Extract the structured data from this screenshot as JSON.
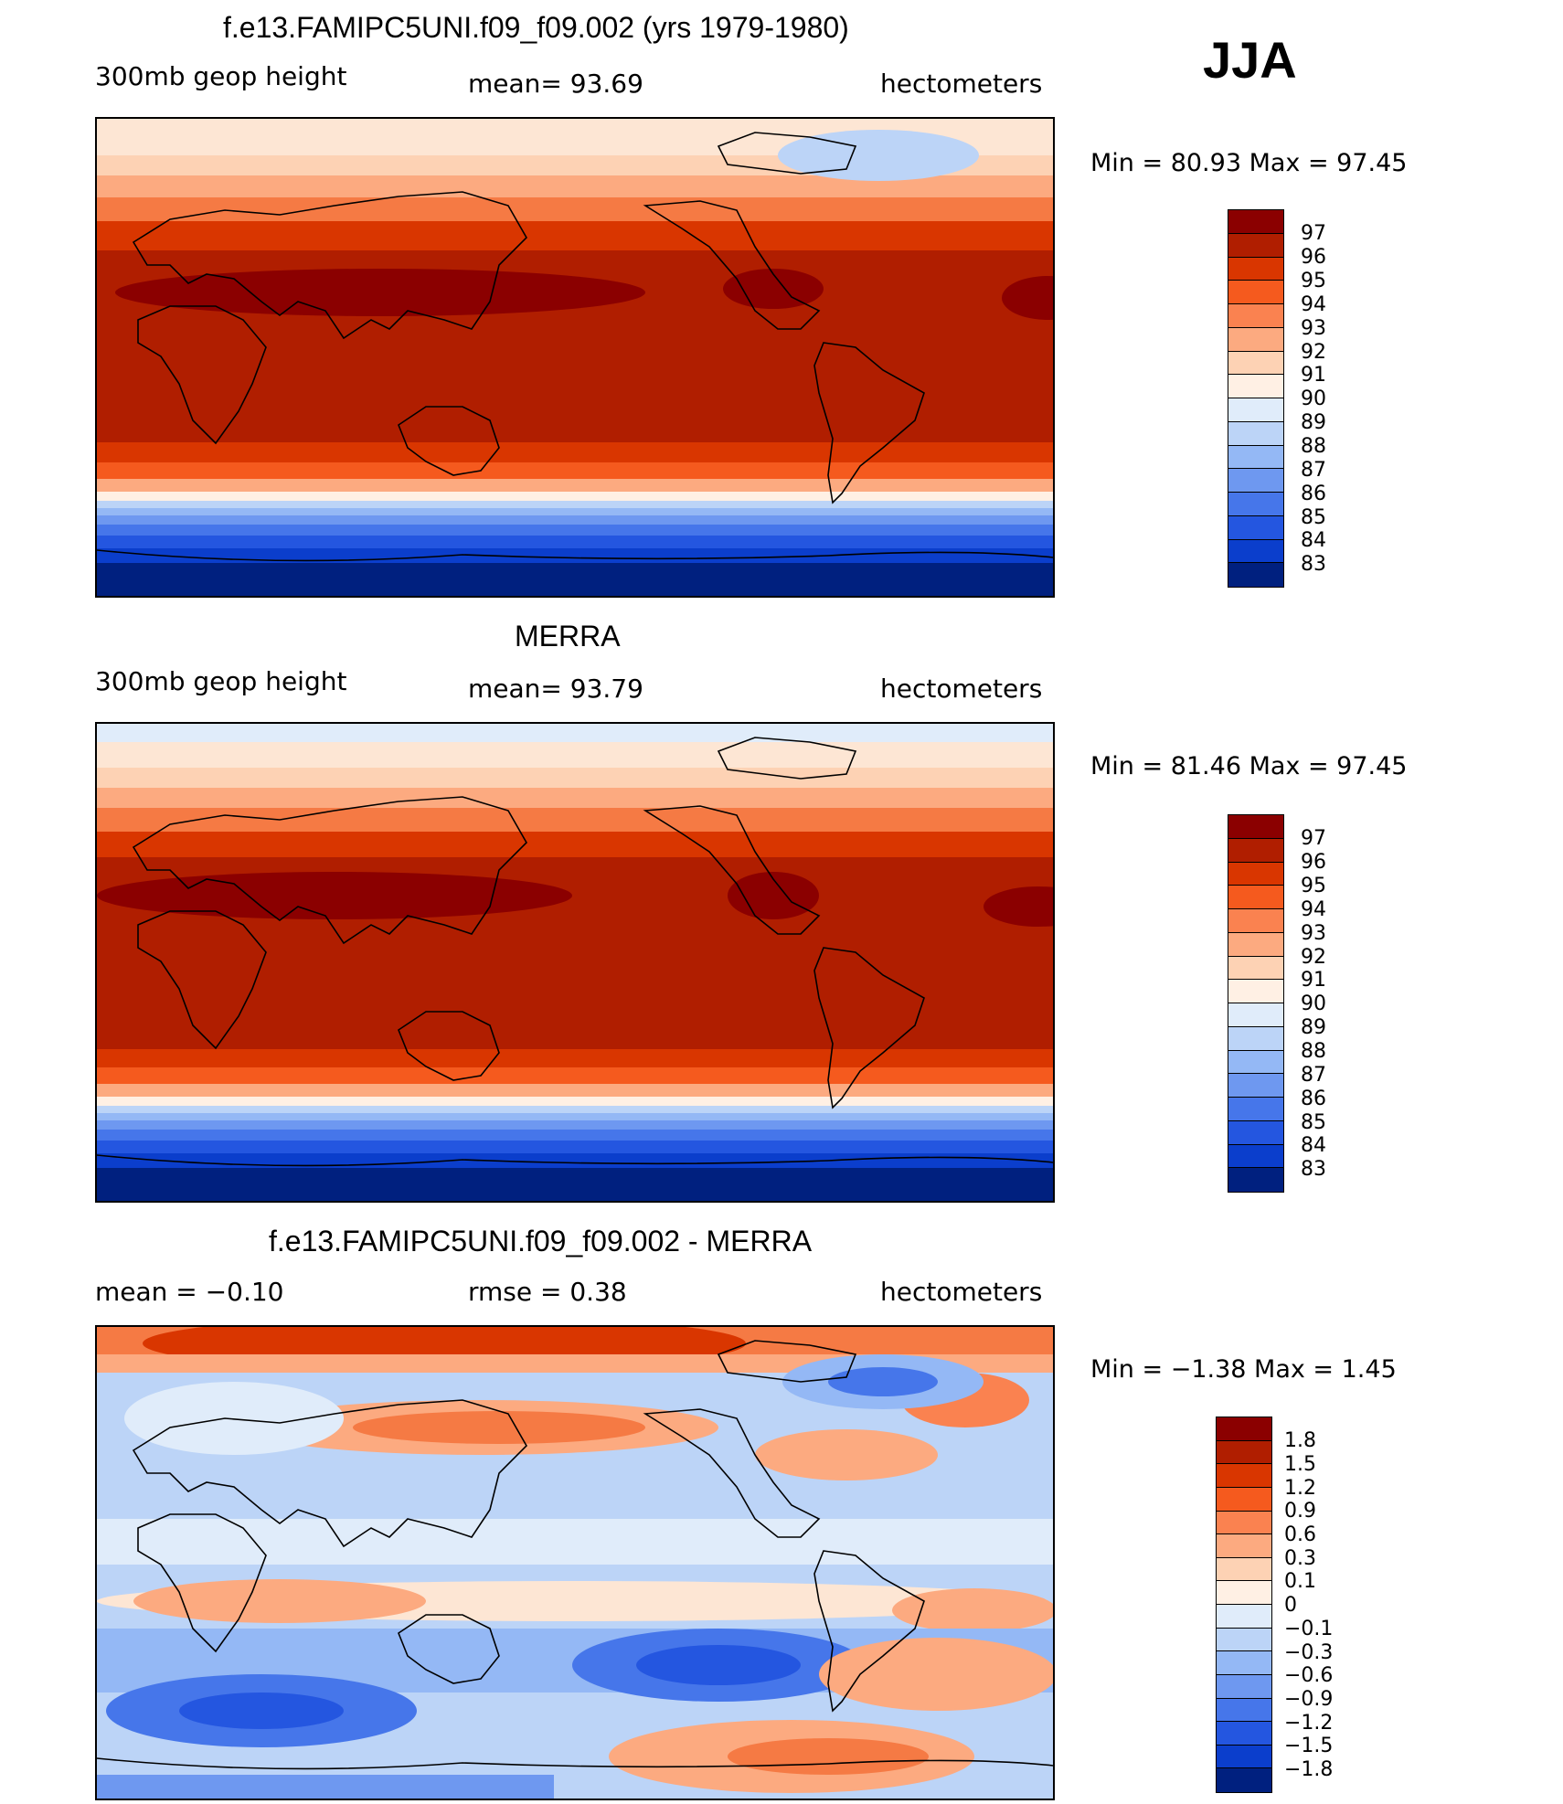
{
  "season": "JJA",
  "panels": [
    {
      "id": "model",
      "title": "f.e13.FAMIPC5UNI.f09_f09.002 (yrs 1979-1980)",
      "left_label": "300mb  geop  height",
      "center_label": "mean=   93.69",
      "right_label": "hectometers",
      "minmax": "Min =    80.93  Max =    97.45",
      "colorbar_labels": [
        "97",
        "96",
        "95",
        "94",
        "93",
        "92",
        "91",
        "90",
        "89",
        "88",
        "87",
        "86",
        "85",
        "84",
        "83"
      ]
    },
    {
      "id": "obs",
      "title": "MERRA",
      "left_label": "300mb  geop  height",
      "center_label": "mean=   93.79",
      "right_label": "hectometers",
      "minmax": "Min =    81.46  Max =    97.45",
      "colorbar_labels": [
        "97",
        "96",
        "95",
        "94",
        "93",
        "92",
        "91",
        "90",
        "89",
        "88",
        "87",
        "86",
        "85",
        "84",
        "83"
      ]
    },
    {
      "id": "diff",
      "title": "f.e13.FAMIPC5UNI.f09_f09.002 - MERRA",
      "left_label": "mean  =    −0.10",
      "center_label": "rmse  =     0.38",
      "right_label": "hectometers",
      "minmax": "Min =   −1.38  Max =      1.45",
      "colorbar_labels": [
        "1.8",
        "1.5",
        "1.2",
        "0.9",
        "0.6",
        "0.3",
        "0.1",
        "0",
        "−0.1",
        "−0.3",
        "−0.6",
        "−0.9",
        "−1.2",
        "−1.5",
        "−1.8"
      ]
    }
  ],
  "colors": {
    "abs_levels": [
      "#8b0000",
      "#b01e00",
      "#d93600",
      "#f55a1e",
      "#fa8250",
      "#fcaa80",
      "#fdd2b4",
      "#fff0e4",
      "#e0ecfa",
      "#bcd4f7",
      "#94b8f5",
      "#6e98f0",
      "#4676ea",
      "#2456e0",
      "#0b3ecc",
      "#00207f"
    ],
    "diff_levels": [
      "#8b0000",
      "#b01e00",
      "#d93600",
      "#f55a1e",
      "#fa8250",
      "#fcaa80",
      "#fdd2b4",
      "#fff0e4",
      "#e0ecfa",
      "#bcd4f7",
      "#94b8f5",
      "#6e98f0",
      "#4676ea",
      "#2456e0",
      "#0b3ecc",
      "#00207f"
    ]
  }
}
